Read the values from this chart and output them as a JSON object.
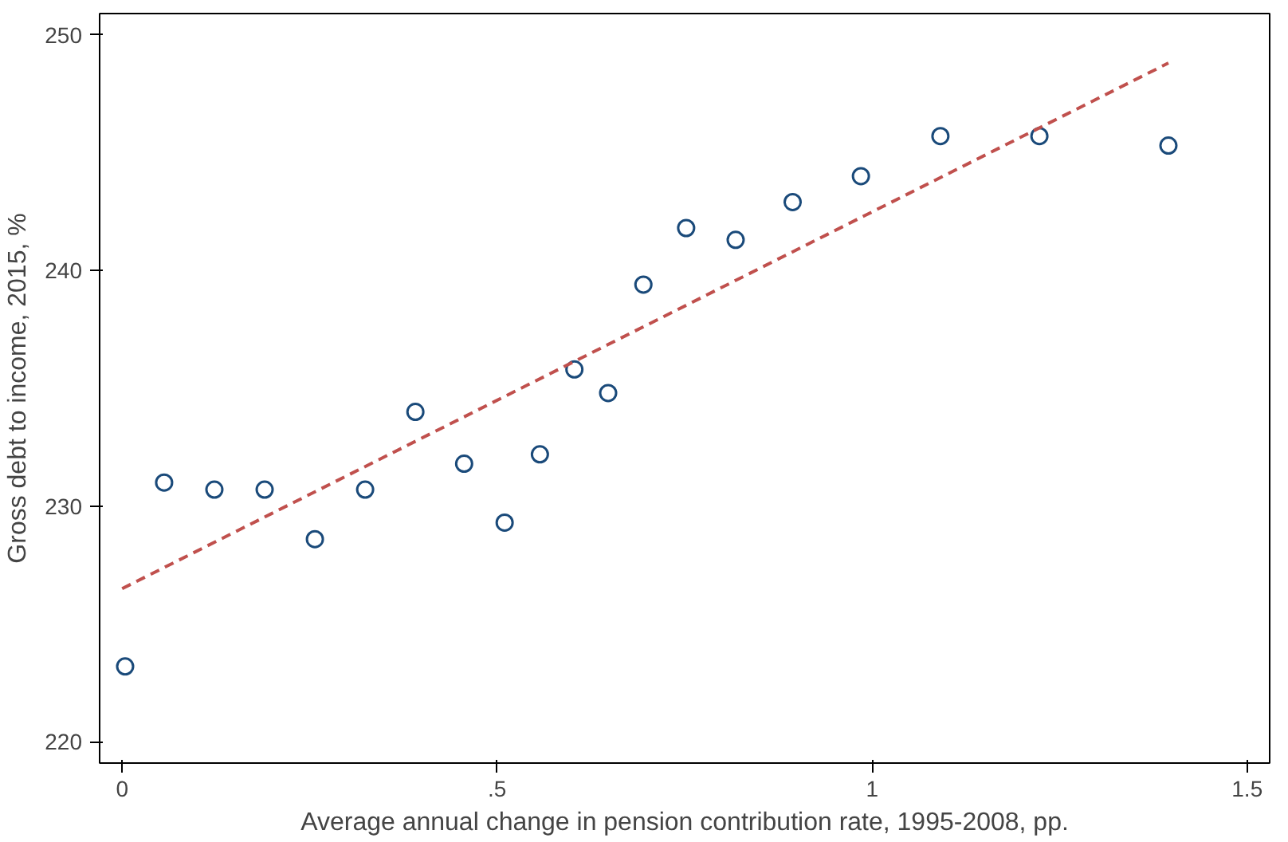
{
  "chart_data": {
    "type": "scatter",
    "xlabel": "Average annual change in pension contribution rate, 1995-2008, pp.",
    "ylabel": "Gross debt to income, 2015, %",
    "xlim": [
      -0.03,
      1.53
    ],
    "ylim": [
      219.1,
      250.9
    ],
    "xticks": [
      {
        "value": 0,
        "label": "0"
      },
      {
        "value": 0.5,
        "label": ".5"
      },
      {
        "value": 1,
        "label": "1"
      },
      {
        "value": 1.5,
        "label": "1.5"
      }
    ],
    "yticks": [
      220,
      230,
      240,
      250
    ],
    "grid": false,
    "series": [
      {
        "color": "#1a4a7a",
        "marker": "circle",
        "x": [
          0.004,
          0.056,
          0.123,
          0.19,
          0.257,
          0.324,
          0.391,
          0.456,
          0.51,
          0.557,
          0.603,
          0.648,
          0.695,
          0.752,
          0.818,
          0.894,
          0.985,
          1.091,
          1.223,
          1.395
        ],
        "values": [
          223.2,
          231.0,
          230.7,
          230.7,
          228.6,
          230.7,
          234.0,
          231.8,
          229.3,
          232.2,
          235.8,
          234.8,
          239.4,
          241.8,
          241.3,
          242.9,
          244.0,
          245.7,
          245.7,
          245.3
        ]
      },
      {
        "type": "line",
        "color": "#c0504d",
        "line_style": "dashed",
        "x": [
          0.0,
          1.395
        ],
        "values": [
          226.5,
          248.8
        ]
      }
    ]
  }
}
